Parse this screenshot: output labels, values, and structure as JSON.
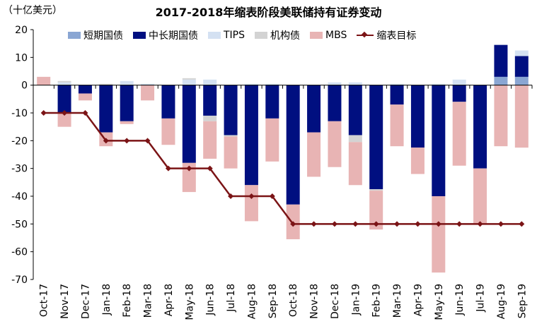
{
  "chart_data": {
    "type": "bar",
    "stacked": true,
    "title": "2017-2018年缩表阶段美联储持有证券变动",
    "unit_label": "（十亿美元）",
    "ylim": [
      -70,
      20
    ],
    "yticks": [
      20,
      10,
      0,
      -10,
      -20,
      -30,
      -40,
      -50,
      -60,
      -70
    ],
    "categories": [
      "Oct-17",
      "Nov-17",
      "Dec-17",
      "Jan-18",
      "Feb-18",
      "Mar-18",
      "Apr-18",
      "May-18",
      "Jun-18",
      "Jul-18",
      "Aug-18",
      "Sep-18",
      "Oct-18",
      "Nov-18",
      "Dec-18",
      "Jan-19",
      "Feb-19",
      "Mar-19",
      "Apr-19",
      "May-19",
      "Jun-19",
      "Jul-19",
      "Aug-19",
      "Sep-19"
    ],
    "series": [
      {
        "name": "短期国债",
        "color": "#8aa6d3",
        "values": [
          0,
          0,
          0,
          0,
          0,
          0,
          0,
          0,
          0,
          0,
          0,
          0,
          0,
          0,
          0,
          0,
          0,
          0,
          0,
          0,
          0,
          0,
          3,
          3
        ]
      },
      {
        "name": "中长期国债",
        "color": "#000f80",
        "values": [
          0,
          -10,
          -3,
          -17,
          -13,
          0,
          -12,
          -28,
          -11,
          -18,
          -36,
          -12,
          -43,
          -17,
          -13,
          -18,
          -37.5,
          -7,
          -22.5,
          -40,
          -6,
          -30,
          11.5,
          7.5
        ]
      },
      {
        "name": "TIPS",
        "color": "#d4e1f2",
        "values": [
          0,
          1,
          0,
          0,
          1.5,
          0.5,
          0,
          2,
          2,
          0,
          0.5,
          0.5,
          0,
          0,
          1,
          1,
          0,
          0.5,
          0,
          0.5,
          2,
          0,
          0,
          2
        ]
      },
      {
        "name": "机构债",
        "color": "#d3d3d3",
        "values": [
          0,
          0.5,
          0,
          0.5,
          0,
          0,
          0,
          0.5,
          -2,
          -0.5,
          0,
          0,
          0,
          0,
          0,
          -2.5,
          -0.5,
          0,
          0,
          0,
          0,
          0,
          0,
          0
        ]
      },
      {
        "name": "MBS",
        "color": "#e8b4b4",
        "values": [
          3,
          -5,
          -2.5,
          -5,
          -1,
          -5.5,
          -9.5,
          -10.5,
          -13.5,
          -11.5,
          -13,
          -15.5,
          -12.5,
          -16,
          -16.5,
          -15.5,
          -14,
          -15,
          -9.5,
          -27.5,
          -23,
          -20,
          -22,
          -22.5
        ]
      }
    ],
    "line": {
      "name": "缩表目标",
      "color": "#7b1416",
      "values": [
        -10,
        -10,
        -10,
        -20,
        -20,
        -20,
        -30,
        -30,
        -30,
        -40,
        -40,
        -40,
        -50,
        -50,
        -50,
        -50,
        -50,
        -50,
        -50,
        -50,
        -50,
        -50,
        -50,
        -50
      ]
    }
  }
}
